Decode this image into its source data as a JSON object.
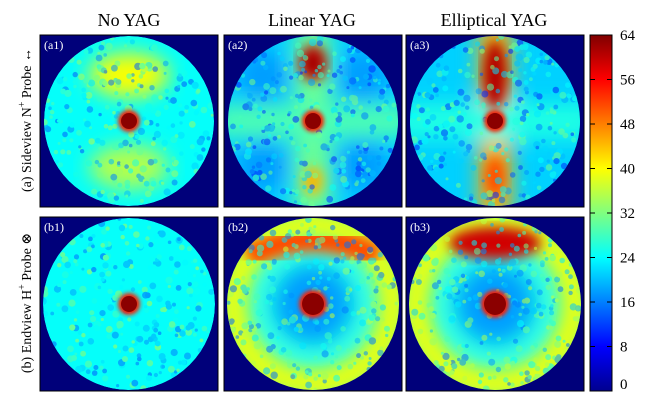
{
  "figure": {
    "column_titles": [
      "No YAG",
      "Linear YAG",
      "Elliptical YAG"
    ],
    "row_labels": [
      {
        "text": "(a) Sideview N",
        "sup": "+",
        "tail": " Probe ↔"
      },
      {
        "text": "(b) Endview H",
        "sup": "+",
        "tail": " Probe ⊗"
      }
    ],
    "panels": [
      {
        "label": "(a1)",
        "pattern": "uniform-noise",
        "lobes": "top-weak"
      },
      {
        "label": "(a2)",
        "pattern": "cross",
        "lobes": "top-strong"
      },
      {
        "label": "(a3)",
        "pattern": "vertical-band",
        "lobes": "vertical"
      },
      {
        "label": "(b1)",
        "pattern": "uniform-noise",
        "lobes": "none"
      },
      {
        "label": "(b2)",
        "pattern": "ring",
        "lobes": "top-arc"
      },
      {
        "label": "(b3)",
        "pattern": "ring",
        "lobes": "top-blob"
      }
    ],
    "colorbar": {
      "colormap": "jet",
      "min": 0,
      "max": 64,
      "ticks": [
        "0",
        "8",
        "16",
        "24",
        "32",
        "40",
        "48",
        "56",
        "64"
      ]
    },
    "colors": {
      "background_dark_blue": "#00007a",
      "panel_frame": "#000000"
    }
  }
}
